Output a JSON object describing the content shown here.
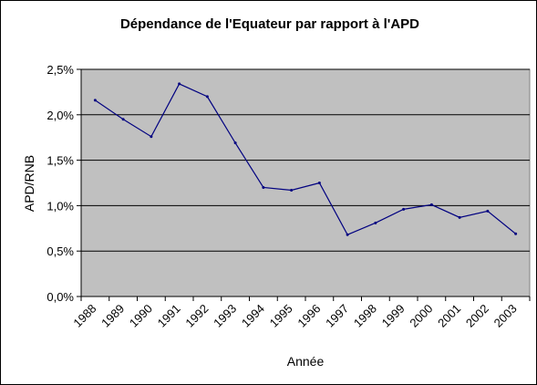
{
  "chart_data": {
    "type": "line",
    "title": "Dépendance de l'Equateur par rapport à l'APD",
    "xlabel": "Année",
    "ylabel": "APD/RNB",
    "categories": [
      "1988",
      "1989",
      "1990",
      "1991",
      "1992",
      "1993",
      "1994",
      "1995",
      "1996",
      "1997",
      "1998",
      "1999",
      "2000",
      "2001",
      "2002",
      "2003"
    ],
    "series": [
      {
        "values": [
          2.16,
          1.95,
          1.76,
          2.34,
          2.2,
          1.69,
          1.2,
          1.17,
          1.25,
          0.68,
          0.81,
          0.96,
          1.01,
          0.87,
          0.94,
          0.69
        ]
      }
    ],
    "ylim": [
      0,
      2.5
    ],
    "yticks": [
      0,
      0.5,
      1.0,
      1.5,
      2.0,
      2.5
    ],
    "ytick_labels": [
      "0,0%",
      "0,5%",
      "1,0%",
      "1,5%",
      "2,0%",
      "2,5%"
    ],
    "grid": true,
    "legend": "none",
    "colors": {
      "plot_background": "#c0c0c0",
      "line": "#000080",
      "gridline": "#000000"
    }
  }
}
